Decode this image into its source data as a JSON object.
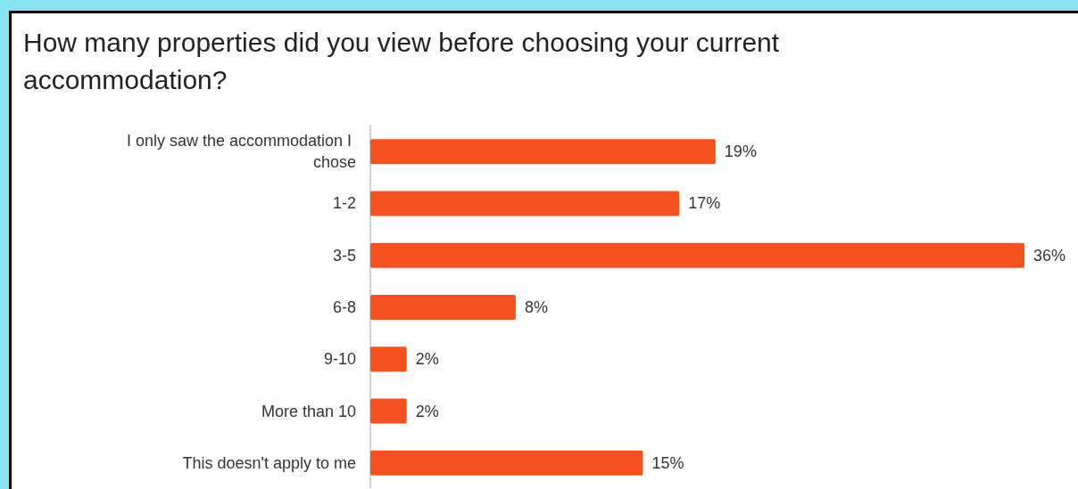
{
  "chart_data": {
    "type": "bar",
    "orientation": "horizontal",
    "title": "How many properties did you view before choosing your current accommodation?",
    "categories": [
      "I only saw the accommodation I chose",
      "1-2",
      "3-5",
      "6-8",
      "9-10",
      "More than 10",
      "This doesn't apply to me"
    ],
    "values": [
      19,
      17,
      36,
      8,
      2,
      2,
      15
    ],
    "value_labels": [
      "19%",
      "17%",
      "36%",
      "8%",
      "2%",
      "2%",
      "15%"
    ],
    "color": "#f4511e"
  }
}
